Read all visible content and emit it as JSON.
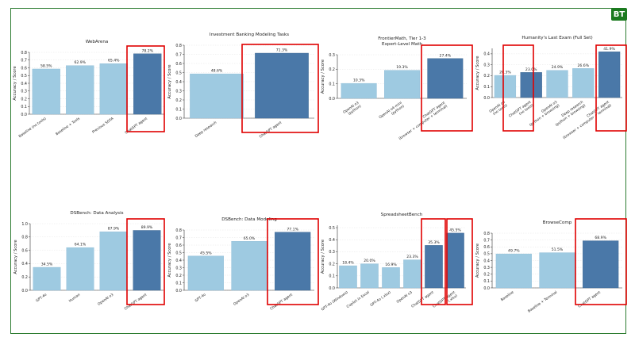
{
  "badge": "BT",
  "colors": {
    "light": "#9ecae1",
    "dark": "#4a78a8",
    "highlight": "#e00000",
    "axis": "#333333"
  },
  "chart_data": [
    {
      "type": "bar",
      "title": "WebArena",
      "ylabel": "Accuracy / Score",
      "ylim": [
        0,
        0.8
      ],
      "yticks": [
        0.0,
        0.1,
        0.2,
        0.3,
        0.4,
        0.5,
        0.6,
        0.7,
        0.8
      ],
      "categories": [
        "Baseline (no tools)",
        "Baseline + Tools",
        "Previous SOTA",
        "ChatGPT agent"
      ],
      "values": [
        0.585,
        0.629,
        0.654,
        0.782
      ],
      "data_labels": [
        "58.5%",
        "62.9%",
        "65.4%",
        "78.2%"
      ],
      "highlighted": [
        3
      ]
    },
    {
      "type": "bar",
      "title": "Investment Banking Modeling Tasks",
      "ylabel": "Accuracy / Score",
      "ylim": [
        0,
        0.8
      ],
      "yticks": [
        0.0,
        0.1,
        0.2,
        0.3,
        0.4,
        0.5,
        0.6,
        0.7,
        0.8
      ],
      "categories": [
        "Deep research",
        "ChatGPT agent"
      ],
      "values": [
        0.486,
        0.713
      ],
      "data_labels": [
        "48.6%",
        "71.3%"
      ],
      "highlighted": [
        1
      ]
    },
    {
      "type": "bar",
      "title": "FrontierMath, Tier 1-3\nExpert-Level Math",
      "ylabel": "Accuracy / Score",
      "ylim": [
        0,
        0.3
      ],
      "yticks": [
        0.0,
        0.1,
        0.2,
        0.3
      ],
      "categories": [
        "OpenAI o3\n(python)",
        "OpenAI o4-mini\n(python)",
        "ChatGPT agent\n(browser + computer + terminal)"
      ],
      "values": [
        0.103,
        0.193,
        0.274
      ],
      "data_labels": [
        "10.3%",
        "19.3%",
        "27.4%"
      ],
      "highlighted": [
        2
      ]
    },
    {
      "type": "bar",
      "title": "Humanity's Last Exam (Full Set)",
      "ylabel": "Accuracy / Score",
      "ylim": [
        0,
        0.45
      ],
      "yticks": [
        0.0,
        0.1,
        0.2,
        0.3,
        0.4
      ],
      "categories": [
        "OpenAI o3\n(no tools)",
        "ChatGPT agent\n(no tools)",
        "OpenAI o3\n(python + browsing)",
        "Deep research\n(python + browsing)",
        "ChatGPT agent\n(browser + computer + terminal)"
      ],
      "values": [
        0.203,
        0.23,
        0.249,
        0.266,
        0.419
      ],
      "data_labels": [
        "20.3%",
        "23.0%",
        "24.9%",
        "26.6%",
        "41.9%"
      ],
      "highlighted": [
        1,
        4
      ]
    },
    {
      "type": "bar",
      "title": "DSBench: Data Analysis",
      "ylabel": "Accuracy / Score",
      "ylim": [
        0,
        1.0
      ],
      "yticks": [
        0.0,
        0.2,
        0.4,
        0.6,
        0.8,
        1.0
      ],
      "categories": [
        "GPT-4o",
        "Human",
        "OpenAI o3",
        "ChatGPT agent"
      ],
      "values": [
        0.345,
        0.641,
        0.879,
        0.899
      ],
      "data_labels": [
        "34.5%",
        "64.1%",
        "87.9%",
        "89.9%"
      ],
      "highlighted": [
        3
      ]
    },
    {
      "type": "bar",
      "title": "DSBench: Data Modeling",
      "ylabel": "Accuracy / Score",
      "ylim": [
        0,
        0.8
      ],
      "yticks": [
        0.0,
        0.1,
        0.2,
        0.3,
        0.4,
        0.5,
        0.6,
        0.7,
        0.8
      ],
      "categories": [
        "GPT-4o",
        "OpenAI o3",
        "ChatGPT agent"
      ],
      "values": [
        0.455,
        0.65,
        0.771
      ],
      "data_labels": [
        "45.5%",
        "65.0%",
        "77.1%"
      ],
      "highlighted": [
        2
      ]
    },
    {
      "type": "bar",
      "title": "SpreadsheetBench",
      "ylabel": "Accuracy / Score",
      "ylim": [
        0,
        0.52
      ],
      "yticks": [
        0.0,
        0.1,
        0.2,
        0.3,
        0.4,
        0.5
      ],
      "categories": [
        "GPT-4o (Windows)",
        "Copilot in Excel",
        "GPT-4o (.xlsx)",
        "OpenAI o3",
        "ChatGPT agent",
        "ChatGPT agent\n(.xlsx)"
      ],
      "values": [
        0.184,
        0.2,
        0.169,
        0.233,
        0.353,
        0.455
      ],
      "data_labels": [
        "18.4%",
        "20.0%",
        "16.9%",
        "23.3%",
        "35.3%",
        "45.5%"
      ],
      "highlighted": [
        4,
        5
      ]
    },
    {
      "type": "bar",
      "title": "BrowseComp",
      "ylabel": "Accuracy / Score",
      "ylim": [
        0,
        0.8
      ],
      "yticks": [
        0.0,
        0.1,
        0.2,
        0.3,
        0.4,
        0.5,
        0.6,
        0.7,
        0.8
      ],
      "categories": [
        "Baseline",
        "Baseline + Terminal",
        "ChatGPT agent"
      ],
      "values": [
        0.497,
        0.515,
        0.689
      ],
      "data_labels": [
        "49.7%",
        "51.5%",
        "68.9%"
      ],
      "highlighted": [
        2
      ]
    }
  ]
}
